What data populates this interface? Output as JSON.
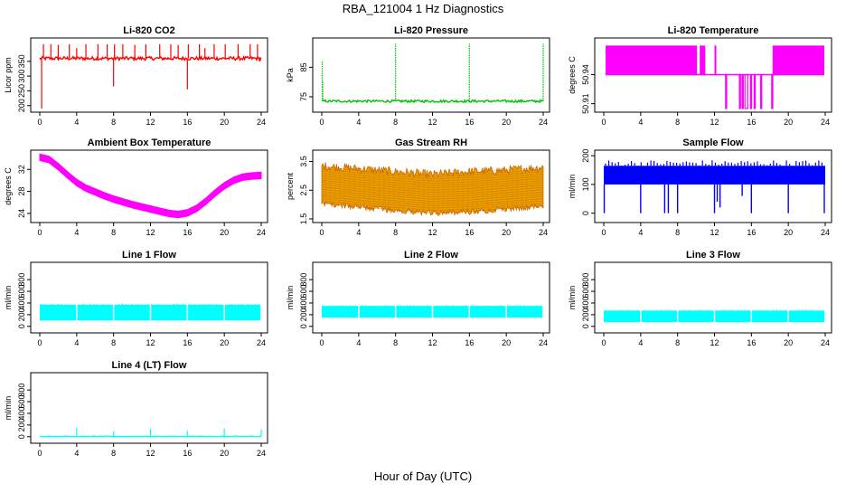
{
  "figure": {
    "title": "RBA_121004  1 Hz Diagnostics",
    "xlabel": "Hour of Day (UTC)"
  },
  "chart_data": [
    {
      "id": "co2",
      "type": "line",
      "title": "Li-820 CO2",
      "ylabel": "Licor ppm",
      "color": "#ff0000",
      "xlim": [
        0,
        24
      ],
      "ylim": [
        190,
        420
      ],
      "xticks": [
        0,
        4,
        8,
        12,
        16,
        20,
        24
      ],
      "yticks": [
        200,
        250,
        300,
        350
      ],
      "series": [
        {
          "baseline": 360,
          "noise": 6,
          "spikes": [
            [
              0.2,
              190
            ],
            [
              0.4,
              408
            ],
            [
              1.2,
              408
            ],
            [
              2.0,
              406
            ],
            [
              3.2,
              408
            ],
            [
              4.0,
              395
            ],
            [
              5.0,
              408
            ],
            [
              6.3,
              408
            ],
            [
              7.3,
              408
            ],
            [
              8.0,
              265
            ],
            [
              8.1,
              408
            ],
            [
              9.0,
              408
            ],
            [
              10.3,
              406
            ],
            [
              11.5,
              408
            ],
            [
              13.0,
              408
            ],
            [
              14.2,
              408
            ],
            [
              15.0,
              406
            ],
            [
              16.0,
              255
            ],
            [
              16.1,
              408
            ],
            [
              17.3,
              408
            ],
            [
              17.9,
              395
            ],
            [
              18.9,
              408
            ],
            [
              20.1,
              408
            ],
            [
              21.5,
              408
            ],
            [
              22.8,
              408
            ],
            [
              23.6,
              408
            ],
            [
              23.9,
              350
            ]
          ]
        }
      ]
    },
    {
      "id": "pressure",
      "type": "line",
      "title": "Li-820 Pressure",
      "ylabel": "kPa",
      "color": "#00c000",
      "xlim": [
        0,
        24
      ],
      "ylim": [
        71,
        94
      ],
      "xticks": [
        0,
        4,
        8,
        12,
        16,
        20,
        24
      ],
      "yticks": [
        75,
        85
      ],
      "series": [
        {
          "baseline": 73.5,
          "noise": 0.4,
          "spikes": [
            [
              0.05,
              87
            ],
            [
              0.1,
              80
            ],
            [
              8.0,
              93
            ],
            [
              16.0,
              93
            ],
            [
              24.0,
              93
            ]
          ]
        }
      ]
    },
    {
      "id": "licor_temp",
      "type": "line",
      "title": "Li-820 Temperature",
      "ylabel": "degrees C",
      "color": "#ff00ff",
      "xlim": [
        0,
        24
      ],
      "ylim": [
        50.905,
        50.975
      ],
      "xticks": [
        0,
        4,
        8,
        12,
        16,
        20,
        24
      ],
      "yticks": [
        50.91,
        50.94
      ],
      "ytick_labels": [
        "50.91",
        "50.94"
      ],
      "series": [
        {
          "levels": [
            50.94,
            50.97
          ],
          "dense_segments": [
            [
              0.2,
              10.1
            ],
            [
              10.4,
              11.0
            ],
            [
              12.0,
              12.2
            ],
            [
              18.3,
              23.9
            ]
          ],
          "low_value": 50.905,
          "low_segments": [
            [
              13.2,
              13.3
            ],
            [
              14.7,
              14.8
            ],
            [
              15.0,
              15.1
            ],
            [
              15.3,
              15.6
            ],
            [
              15.9,
              16.0
            ],
            [
              16.3,
              16.4
            ],
            [
              17.0,
              17.1
            ],
            [
              18.2,
              18.3
            ]
          ]
        }
      ]
    },
    {
      "id": "box_temp",
      "type": "line",
      "title": "Ambient Box Temperature",
      "ylabel": "degrees C",
      "color": "#ff00ff",
      "xlim": [
        0,
        24
      ],
      "ylim": [
        23,
        35
      ],
      "xticks": [
        0,
        4,
        8,
        12,
        16,
        20,
        24
      ],
      "yticks": [
        24,
        28,
        32
      ],
      "series": [
        {
          "points": [
            [
              0,
              34.2
            ],
            [
              1,
              33.8
            ],
            [
              2,
              32.5
            ],
            [
              3,
              31.0
            ],
            [
              4,
              29.6
            ],
            [
              5,
              28.6
            ],
            [
              6,
              27.9
            ],
            [
              7,
              27.2
            ],
            [
              8,
              26.6
            ],
            [
              9,
              26.1
            ],
            [
              10,
              25.6
            ],
            [
              11,
              25.2
            ],
            [
              12,
              24.8
            ],
            [
              13,
              24.4
            ],
            [
              14,
              24.0
            ],
            [
              15,
              23.8
            ],
            [
              16,
              24.1
            ],
            [
              17,
              24.9
            ],
            [
              18,
              26.2
            ],
            [
              19,
              27.7
            ],
            [
              20,
              29.0
            ],
            [
              21,
              30.0
            ],
            [
              22,
              30.6
            ],
            [
              23,
              30.8
            ],
            [
              24,
              30.9
            ]
          ],
          "band": 0.6
        }
      ]
    },
    {
      "id": "rh",
      "type": "line",
      "title": "Gas Stream RH",
      "ylabel": "percent",
      "color": "#e8a000",
      "xlim": [
        0,
        24
      ],
      "ylim": [
        1.5,
        3.8
      ],
      "xticks": [
        0,
        4,
        8,
        12,
        16,
        20,
        24
      ],
      "yticks": [
        1.5,
        2.5,
        3.5
      ],
      "series": [
        {
          "upper": [
            [
              0,
              3.35
            ],
            [
              4,
              3.25
            ],
            [
              8,
              3.15
            ],
            [
              12,
              3.05
            ],
            [
              16,
              3.15
            ],
            [
              20,
              3.2
            ],
            [
              24,
              3.3
            ]
          ],
          "lower": [
            [
              0,
              2.05
            ],
            [
              4,
              1.9
            ],
            [
              8,
              1.8
            ],
            [
              12,
              1.7
            ],
            [
              16,
              1.75
            ],
            [
              20,
              1.85
            ],
            [
              24,
              1.95
            ]
          ],
          "dot_color": "#cc6600"
        }
      ]
    },
    {
      "id": "sample_flow",
      "type": "line",
      "title": "Sample Flow",
      "ylabel": "ml/min",
      "color": "#0000ff",
      "xlim": [
        0,
        24
      ],
      "ylim": [
        -20,
        210
      ],
      "xticks": [
        0,
        4,
        8,
        12,
        16,
        20,
        24
      ],
      "yticks": [
        0,
        100,
        200
      ],
      "series": [
        {
          "band": [
            100,
            165
          ],
          "peak": 185,
          "dips": [
            [
              0.05,
              0
            ],
            [
              4.0,
              0
            ],
            [
              6.6,
              0
            ],
            [
              7.0,
              0
            ],
            [
              8.0,
              0
            ],
            [
              12.0,
              0
            ],
            [
              12.3,
              40
            ],
            [
              12.6,
              20
            ],
            [
              15.0,
              60
            ],
            [
              16.0,
              0
            ],
            [
              20.0,
              0
            ],
            [
              23.9,
              0
            ]
          ]
        }
      ]
    },
    {
      "id": "line1",
      "type": "line",
      "title": "Line 1 Flow",
      "ylabel": "ml/min",
      "color": "#00ffff",
      "xlim": [
        0,
        24
      ],
      "ylim": [
        -50,
        1050
      ],
      "xticks": [
        0,
        4,
        8,
        12,
        16,
        20,
        24
      ],
      "yticks": [
        0,
        200,
        400,
        600,
        800
      ],
      "series": [
        {
          "band": [
            100,
            370
          ],
          "gaps": [
            4.0,
            8.0,
            12.0,
            16.0,
            20.0,
            24.0
          ]
        }
      ]
    },
    {
      "id": "line2",
      "type": "line",
      "title": "Line 2 Flow",
      "ylabel": "ml/min",
      "color": "#00ffff",
      "xlim": [
        0,
        24
      ],
      "ylim": [
        -50,
        1050
      ],
      "xticks": [
        0,
        4,
        8,
        12,
        16,
        20,
        24
      ],
      "yticks": [
        0,
        200,
        400,
        600,
        800
      ],
      "series": [
        {
          "band": [
            150,
            350
          ],
          "gaps": [
            4.0,
            8.0,
            12.0,
            16.0,
            20.0,
            24.0
          ]
        }
      ]
    },
    {
      "id": "line3",
      "type": "line",
      "title": "Line 3 Flow",
      "ylabel": "ml/min",
      "color": "#00ffff",
      "xlim": [
        0,
        24
      ],
      "ylim": [
        -50,
        1050
      ],
      "xticks": [
        0,
        4,
        8,
        12,
        16,
        20,
        24
      ],
      "yticks": [
        0,
        200,
        400,
        600,
        800
      ],
      "series": [
        {
          "band": [
            70,
            270
          ],
          "gaps": [
            4.0,
            8.0,
            12.0,
            16.0,
            20.0,
            24.0
          ]
        }
      ]
    },
    {
      "id": "line4",
      "type": "line",
      "title": "Line 4 (LT) Flow",
      "ylabel": "ml/min",
      "color": "#00ffff",
      "xlim": [
        0,
        24
      ],
      "ylim": [
        -50,
        1050
      ],
      "xticks": [
        0,
        4,
        8,
        12,
        16,
        20,
        24
      ],
      "yticks": [
        0,
        200,
        400,
        600,
        800
      ],
      "series": [
        {
          "baseline": 5,
          "noise": 6,
          "spikes": [
            [
              4.0,
              150
            ],
            [
              8.0,
              90
            ],
            [
              12.0,
              140
            ],
            [
              16.0,
              100
            ],
            [
              20.0,
              140
            ],
            [
              24.0,
              120
            ]
          ]
        }
      ]
    }
  ]
}
